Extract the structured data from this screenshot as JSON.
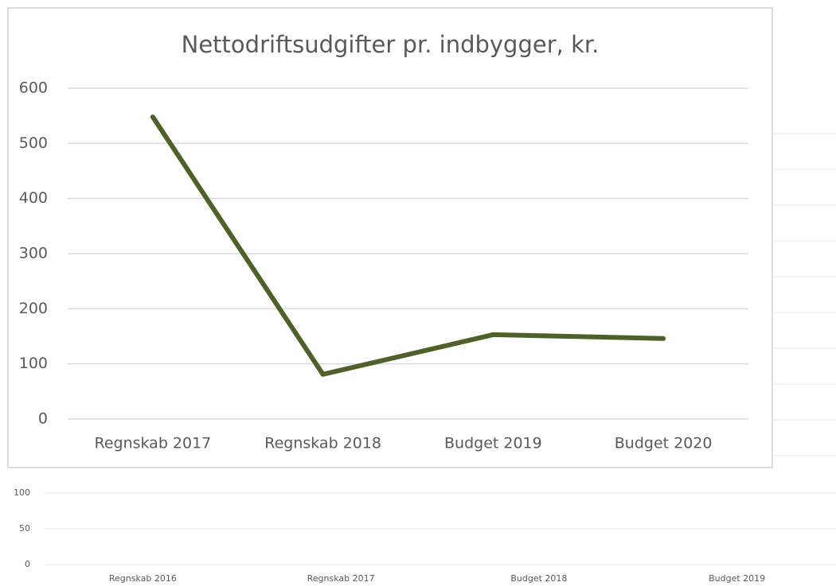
{
  "chart_data": [
    {
      "type": "line",
      "title": "Nettodriftsudgifter pr. indbygger, kr.",
      "categories": [
        "Regnskab 2017",
        "Regnskab 2018",
        "Budget 2019",
        "Budget 2020"
      ],
      "values": [
        548,
        81,
        153,
        146
      ],
      "color": "#4e6128",
      "ylim": [
        0,
        600
      ],
      "yticks": [
        0,
        100,
        200,
        300,
        400,
        500,
        600
      ],
      "grid": true
    },
    {
      "type": "line",
      "categories": [
        "Regnskab 2016",
        "Regnskab 2017",
        "Budget 2018",
        "Budget 2019"
      ],
      "ylim": [
        0,
        100
      ],
      "yticks": [
        0,
        50,
        100
      ],
      "grid": true
    }
  ]
}
